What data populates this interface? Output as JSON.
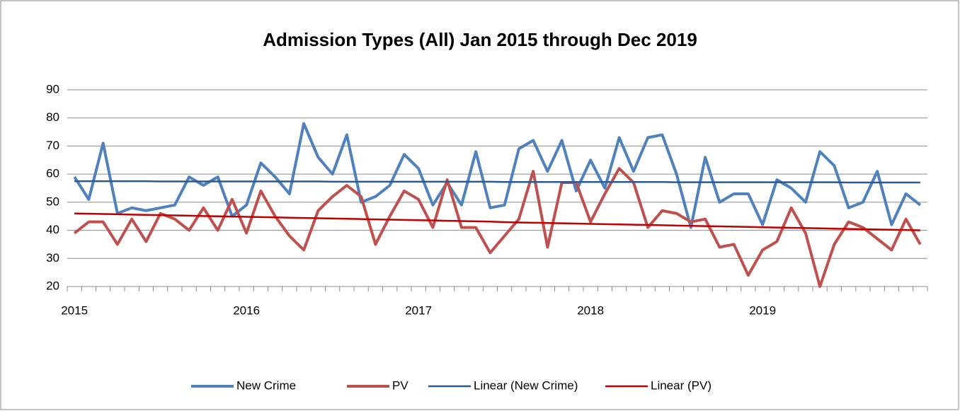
{
  "chart_data": {
    "type": "line",
    "title": "Admission Types (All) Jan 2015 through Dec 2019",
    "categories": [
      "2015",
      null,
      null,
      null,
      null,
      null,
      null,
      null,
      null,
      null,
      null,
      null,
      "2016",
      null,
      null,
      null,
      null,
      null,
      null,
      null,
      null,
      null,
      null,
      null,
      "2017",
      null,
      null,
      null,
      null,
      null,
      null,
      null,
      null,
      null,
      null,
      null,
      "2018",
      null,
      null,
      null,
      null,
      null,
      null,
      null,
      null,
      null,
      null,
      null,
      "2019",
      null,
      null,
      null,
      null,
      null,
      null,
      null,
      null,
      null,
      null,
      null
    ],
    "series": [
      {
        "name": "New Crime",
        "color": "#4f81bd",
        "values": [
          59,
          51,
          71,
          46,
          48,
          47,
          48,
          49,
          59,
          56,
          59,
          45,
          49,
          64,
          59,
          53,
          78,
          66,
          60,
          74,
          50,
          52,
          56,
          67,
          62,
          49,
          57,
          49,
          68,
          48,
          49,
          69,
          72,
          61,
          72,
          54,
          65,
          55,
          73,
          61,
          73,
          74,
          60,
          41,
          66,
          50,
          53,
          53,
          42,
          58,
          55,
          50,
          68,
          63,
          48,
          50,
          61,
          42,
          53,
          49
        ]
      },
      {
        "name": "PV",
        "color": "#c0504d",
        "values": [
          39,
          43,
          43,
          35,
          44,
          36,
          46,
          44,
          40,
          48,
          40,
          51,
          39,
          54,
          45,
          38,
          33,
          47,
          52,
          56,
          52,
          35,
          45,
          54,
          51,
          41,
          58,
          41,
          41,
          32,
          38,
          44,
          61,
          34,
          57,
          57,
          43,
          53,
          62,
          57,
          41,
          47,
          46,
          43,
          44,
          34,
          35,
          24,
          33,
          36,
          48,
          39,
          20,
          35,
          43,
          41,
          37,
          33,
          44,
          35
        ]
      },
      {
        "name": "Linear (New Crime)",
        "color": "#2a5a92",
        "values": [
          57.5,
          57.5,
          57.5,
          57.5,
          57.5,
          57.5,
          57.4,
          57.4,
          57.4,
          57.4,
          57.4,
          57.4,
          57.4,
          57.4,
          57.4,
          57.4,
          57.4,
          57.4,
          57.3,
          57.3,
          57.3,
          57.3,
          57.3,
          57.3,
          57.3,
          57.3,
          57.3,
          57.3,
          57.3,
          57.3,
          57.2,
          57.2,
          57.2,
          57.2,
          57.2,
          57.2,
          57.2,
          57.2,
          57.2,
          57.2,
          57.2,
          57.2,
          57.1,
          57.1,
          57.1,
          57.1,
          57.1,
          57.1,
          57.1,
          57.1,
          57.1,
          57.1,
          57.1,
          57.1,
          57.0,
          57.0,
          57.0,
          57.0,
          57.0,
          57.0
        ]
      },
      {
        "name": "Linear (PV)",
        "color": "#c00000",
        "values": [
          46.0,
          45.9,
          45.8,
          45.7,
          45.6,
          45.5,
          45.4,
          45.3,
          45.2,
          45.1,
          45.0,
          44.9,
          44.8,
          44.7,
          44.6,
          44.5,
          44.4,
          44.3,
          44.2,
          44.1,
          44.0,
          43.9,
          43.8,
          43.7,
          43.6,
          43.5,
          43.4,
          43.3,
          43.2,
          43.1,
          42.9,
          42.8,
          42.7,
          42.6,
          42.5,
          42.4,
          42.3,
          42.2,
          42.1,
          42.0,
          41.9,
          41.8,
          41.7,
          41.6,
          41.5,
          41.4,
          41.3,
          41.2,
          41.1,
          41.0,
          40.9,
          40.8,
          40.7,
          40.6,
          40.5,
          40.4,
          40.3,
          40.2,
          40.1,
          40.0
        ]
      }
    ],
    "ylim": [
      20,
      90
    ],
    "yticks": [
      20,
      30,
      40,
      50,
      60,
      70,
      80,
      90
    ],
    "grid": true,
    "legend": "bottom"
  }
}
